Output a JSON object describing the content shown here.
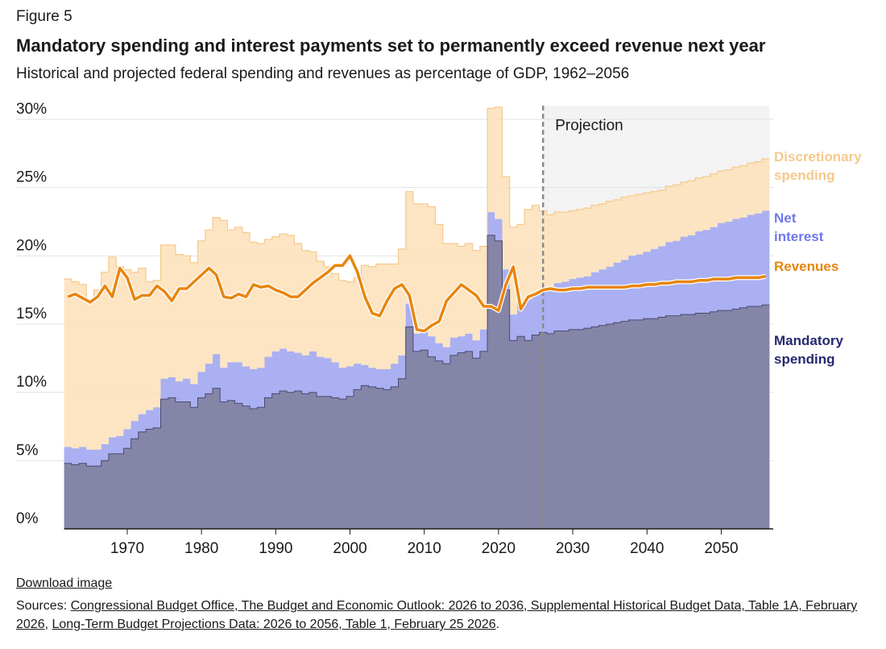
{
  "figure_label": "Figure 5",
  "download_label": "Download image",
  "sources": {
    "prefix": "Sources: ",
    "link1": "Congressional Budget Office, The Budget and Economic Outlook: 2026 to 2036, Supplemental Historical Budget Data, Table 1A, February 2026",
    "sep": ", ",
    "link2": "Long-Term Budget Projections Data: 2026 to 2056, Table 1, February 25 2026",
    "suffix": "."
  },
  "colors": {
    "mandatory": "#8585a8",
    "mandatory_line": "#4a4a72",
    "net_interest": "#a5acf0",
    "discretionary": "#fde0b8",
    "discretionary_line": "#f5c98c",
    "revenues": "#e8850e",
    "projection_bg": "#f3f3f3",
    "label_discretionary": "#f5c98c",
    "label_interest": "#6f78ec",
    "label_revenues": "#e8850e",
    "label_mandatory": "#252a6e"
  },
  "chart_data": {
    "type": "area",
    "title": "Mandatory spending and interest payments set to permanently exceed revenue next year",
    "subtitle": "Historical and projected federal spending and revenues as percentage of GDP, 1962–2056",
    "xlabel": "",
    "ylabel": "",
    "xlim": [
      1961,
      2057
    ],
    "ylim": [
      0,
      30
    ],
    "xticks": [
      1970,
      1980,
      1990,
      2000,
      2010,
      2020,
      2030,
      2040,
      2050
    ],
    "yticks": [
      0,
      5,
      10,
      15,
      20,
      25,
      30
    ],
    "ytick_labels": [
      "0%",
      "5%",
      "10%",
      "15%",
      "20%",
      "25%",
      "30%"
    ],
    "grid": true,
    "projection_start": 2026,
    "projection_label": "Projection",
    "stacked": true,
    "x": [
      1962,
      1963,
      1964,
      1965,
      1966,
      1967,
      1968,
      1969,
      1970,
      1971,
      1972,
      1973,
      1974,
      1975,
      1976,
      1977,
      1978,
      1979,
      1980,
      1981,
      1982,
      1983,
      1984,
      1985,
      1986,
      1987,
      1988,
      1989,
      1990,
      1991,
      1992,
      1993,
      1994,
      1995,
      1996,
      1997,
      1998,
      1999,
      2000,
      2001,
      2002,
      2003,
      2004,
      2005,
      2006,
      2007,
      2008,
      2009,
      2010,
      2011,
      2012,
      2013,
      2014,
      2015,
      2016,
      2017,
      2018,
      2019,
      2020,
      2021,
      2022,
      2023,
      2024,
      2025,
      2026,
      2027,
      2028,
      2029,
      2030,
      2031,
      2032,
      2033,
      2034,
      2035,
      2036,
      2037,
      2038,
      2039,
      2040,
      2041,
      2042,
      2043,
      2044,
      2045,
      2046,
      2047,
      2048,
      2049,
      2050,
      2051,
      2052,
      2053,
      2054,
      2055,
      2056
    ],
    "series": [
      {
        "name": "Mandatory spending",
        "type": "area",
        "values": [
          4.8,
          4.7,
          4.8,
          4.6,
          4.6,
          5.0,
          5.5,
          5.5,
          5.9,
          6.6,
          7.1,
          7.3,
          7.4,
          9.5,
          9.6,
          9.3,
          9.3,
          8.9,
          9.6,
          9.9,
          10.3,
          9.3,
          9.4,
          9.2,
          9.0,
          8.8,
          8.9,
          9.6,
          9.9,
          10.1,
          10.0,
          10.1,
          9.9,
          10.0,
          9.7,
          9.7,
          9.6,
          9.5,
          9.7,
          10.2,
          10.5,
          10.4,
          10.3,
          10.2,
          10.4,
          11.0,
          14.8,
          13.0,
          13.1,
          12.6,
          12.3,
          12.1,
          12.7,
          12.9,
          13.0,
          12.5,
          13.0,
          21.5,
          21.1,
          17.5,
          13.8,
          14.1,
          13.8,
          14.2,
          14.4,
          14.3,
          14.5,
          14.5,
          14.6,
          14.6,
          14.7,
          14.8,
          14.9,
          15.0,
          15.1,
          15.2,
          15.3,
          15.3,
          15.4,
          15.4,
          15.5,
          15.6,
          15.6,
          15.7,
          15.7,
          15.8,
          15.8,
          15.9,
          16.0,
          16.0,
          16.1,
          16.2,
          16.3,
          16.3,
          16.4
        ]
      },
      {
        "name": "Net interest",
        "type": "area",
        "values": [
          1.2,
          1.2,
          1.2,
          1.2,
          1.2,
          1.2,
          1.2,
          1.3,
          1.4,
          1.3,
          1.3,
          1.4,
          1.5,
          1.5,
          1.5,
          1.5,
          1.7,
          1.7,
          1.9,
          2.2,
          2.5,
          2.5,
          2.8,
          3.0,
          2.9,
          2.9,
          2.9,
          3.0,
          3.1,
          3.1,
          3.0,
          2.8,
          2.8,
          3.0,
          2.9,
          2.8,
          2.6,
          2.3,
          2.2,
          1.9,
          1.5,
          1.4,
          1.4,
          1.5,
          1.7,
          1.7,
          1.7,
          1.3,
          1.4,
          1.5,
          1.3,
          1.2,
          1.3,
          1.2,
          1.3,
          1.3,
          1.6,
          1.7,
          1.6,
          1.5,
          1.9,
          2.4,
          3.0,
          3.1,
          3.1,
          3.3,
          3.5,
          3.6,
          3.7,
          3.8,
          3.8,
          4.0,
          4.1,
          4.2,
          4.4,
          4.5,
          4.7,
          4.8,
          4.9,
          5.1,
          5.2,
          5.4,
          5.5,
          5.7,
          5.8,
          6.0,
          6.1,
          6.2,
          6.4,
          6.5,
          6.6,
          6.6,
          6.7,
          6.8,
          6.9
        ]
      },
      {
        "name": "Discretionary spending",
        "type": "area",
        "values": [
          12.3,
          12.2,
          11.9,
          11.0,
          11.7,
          12.6,
          13.2,
          12.4,
          11.7,
          10.9,
          10.7,
          9.4,
          9.3,
          9.8,
          9.7,
          9.3,
          9.0,
          8.9,
          9.6,
          9.8,
          10.0,
          10.8,
          9.7,
          9.9,
          9.8,
          9.3,
          9.1,
          8.6,
          8.4,
          8.4,
          8.5,
          8.0,
          7.7,
          7.3,
          7.0,
          6.7,
          6.5,
          6.4,
          6.2,
          6.3,
          7.3,
          7.4,
          7.7,
          7.7,
          7.3,
          7.8,
          8.2,
          9.5,
          9.3,
          9.5,
          8.7,
          7.6,
          6.9,
          6.6,
          6.6,
          6.6,
          6.1,
          7.6,
          8.2,
          6.8,
          6.4,
          5.8,
          6.6,
          6.4,
          5.8,
          5.4,
          5.2,
          5.1,
          5.0,
          5.0,
          5.0,
          4.9,
          4.8,
          4.8,
          4.6,
          4.6,
          4.4,
          4.4,
          4.3,
          4.2,
          4.1,
          4.1,
          4.1,
          4.0,
          4.0,
          3.9,
          3.9,
          3.9,
          3.8,
          3.8,
          3.8,
          3.8,
          3.8,
          3.8,
          3.8
        ]
      },
      {
        "name": "Revenues",
        "type": "line",
        "values": [
          17.0,
          17.2,
          16.9,
          16.6,
          17.0,
          17.8,
          17.0,
          19.1,
          18.4,
          16.8,
          17.1,
          17.1,
          17.8,
          17.4,
          16.7,
          17.6,
          17.6,
          18.1,
          18.6,
          19.1,
          18.6,
          17.0,
          16.9,
          17.2,
          17.0,
          17.9,
          17.7,
          17.8,
          17.5,
          17.3,
          17.0,
          17.0,
          17.5,
          18.0,
          18.4,
          18.8,
          19.3,
          19.3,
          20.0,
          18.8,
          17.0,
          15.8,
          15.6,
          16.7,
          17.6,
          17.9,
          17.1,
          14.6,
          14.5,
          14.9,
          15.2,
          16.7,
          17.3,
          17.9,
          17.5,
          17.1,
          16.3,
          16.3,
          16.0,
          17.9,
          19.2,
          16.1,
          17.0,
          17.2,
          17.5,
          17.6,
          17.5,
          17.5,
          17.6,
          17.6,
          17.7,
          17.7,
          17.7,
          17.7,
          17.7,
          17.7,
          17.8,
          17.8,
          17.9,
          17.9,
          18.0,
          18.0,
          18.1,
          18.1,
          18.1,
          18.2,
          18.2,
          18.3,
          18.3,
          18.3,
          18.4,
          18.4,
          18.4,
          18.4,
          18.5
        ]
      }
    ],
    "legend": {
      "placement": "right",
      "labels": [
        {
          "lines": [
            "Discretionary",
            "spending"
          ],
          "series": "Discretionary spending"
        },
        {
          "lines": [
            "Net",
            "interest"
          ],
          "series": "Net interest"
        },
        {
          "lines": [
            "Revenues"
          ],
          "series": "Revenues"
        },
        {
          "lines": [
            "Mandatory",
            "spending"
          ],
          "series": "Mandatory spending"
        }
      ]
    }
  }
}
